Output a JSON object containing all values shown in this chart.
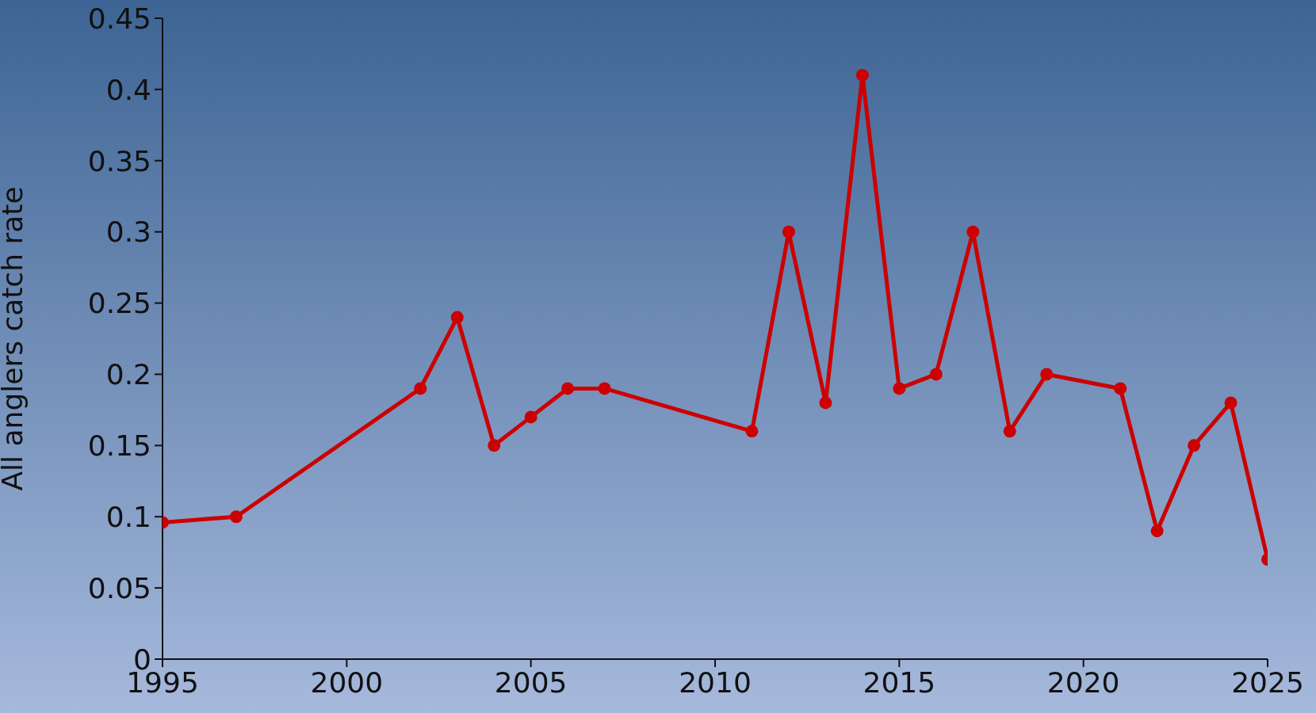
{
  "chart_data": {
    "type": "line",
    "ylabel": "All anglers catch rate",
    "x": [
      1995,
      1997,
      2002,
      2003,
      2004,
      2005,
      2006,
      2007,
      2011,
      2012,
      2013,
      2014,
      2015,
      2016,
      2017,
      2018,
      2019,
      2021,
      2022,
      2023,
      2024,
      2025
    ],
    "series": [
      {
        "color": "#cc0000",
        "values": [
          0.096,
          0.1,
          0.19,
          0.24,
          0.15,
          0.17,
          0.19,
          0.19,
          0.16,
          0.3,
          0.18,
          0.41,
          0.19,
          0.2,
          0.3,
          0.16,
          0.2,
          0.19,
          0.09,
          0.15,
          0.18,
          0.07
        ]
      }
    ],
    "xlim": [
      1995,
      2025
    ],
    "xticks": [
      1995,
      2000,
      2005,
      2010,
      2015,
      2020,
      2025
    ],
    "ylim": [
      0,
      0.45
    ],
    "yticks": [
      0,
      0.05,
      0.1,
      0.15,
      0.2,
      0.25,
      0.3,
      0.35,
      0.4,
      0.45
    ],
    "grid": false,
    "legend": false,
    "marker": "circle",
    "line_style": "solid"
  }
}
